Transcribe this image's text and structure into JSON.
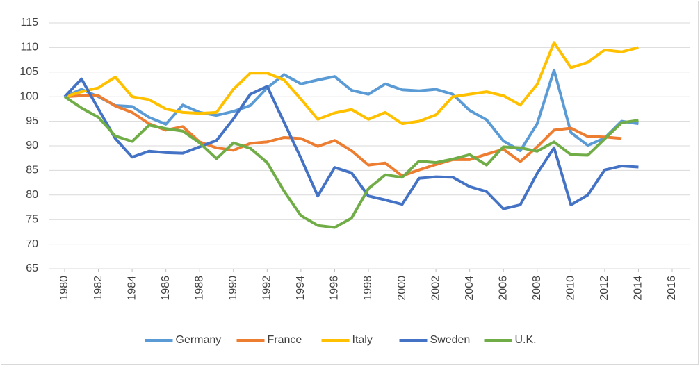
{
  "chart_data": {
    "type": "line",
    "x": [
      1980,
      1981,
      1982,
      1983,
      1984,
      1985,
      1986,
      1987,
      1988,
      1989,
      1990,
      1991,
      1992,
      1993,
      1994,
      1995,
      1996,
      1997,
      1998,
      1999,
      2000,
      2001,
      2002,
      2003,
      2004,
      2005,
      2006,
      2007,
      2008,
      2009,
      2010,
      2011,
      2012,
      2013,
      2014
    ],
    "series": [
      {
        "name": "Germany",
        "color": "#5B9BD5",
        "values": [
          100,
          101.5,
          100,
          98.2,
          98,
          95.8,
          94.4,
          98.3,
          96.8,
          96.2,
          97,
          98.2,
          101.8,
          104.5,
          102.6,
          103.4,
          104.1,
          101.3,
          100.5,
          102.6,
          101.4,
          101.2,
          101.5,
          100.5,
          97.2,
          95.3,
          91,
          89,
          94.5,
          105.4,
          92.7,
          90.1,
          91.6,
          95,
          94.5
        ]
      },
      {
        "name": "France",
        "color": "#ED7D31",
        "values": [
          100,
          100.2,
          100.2,
          98.1,
          96.8,
          94.5,
          93.2,
          93.9,
          90.8,
          89.6,
          89.1,
          90.5,
          90.8,
          91.7,
          91.5,
          89.9,
          91.1,
          89,
          86.1,
          86.5,
          83.9,
          85.1,
          86.2,
          87.2,
          87.2,
          88.3,
          89.3,
          86.8,
          89.8,
          93.2,
          93.6,
          91.9,
          91.8,
          91.5,
          null
        ]
      },
      {
        "name": "Italy",
        "color": "#FFC000",
        "values": [
          100,
          101,
          101.8,
          104,
          100,
          99.4,
          97.5,
          96.8,
          96.6,
          96.8,
          101.5,
          104.8,
          104.8,
          103.4,
          99.5,
          95.4,
          96.7,
          97.4,
          95.4,
          96.8,
          94.5,
          95,
          96.3,
          100,
          100.5,
          101,
          100.2,
          98.3,
          102.5,
          111,
          105.9,
          107,
          109.5,
          109.1,
          110
        ]
      },
      {
        "name": "Sweden",
        "color": "#4472C4",
        "values": [
          100,
          103.6,
          97.5,
          91.5,
          87.7,
          88.9,
          88.6,
          88.5,
          89.8,
          91.1,
          95.5,
          100.5,
          102.1,
          94.8,
          87.5,
          79.8,
          85.6,
          84.5,
          79.8,
          79,
          78.1,
          83.4,
          83.7,
          83.6,
          81.7,
          80.7,
          77.2,
          78,
          84.4,
          89.6,
          78,
          80,
          85.1,
          85.9,
          85.7
        ]
      },
      {
        "name": "U.K.",
        "color": "#70AD47",
        "values": [
          100,
          97.7,
          95.8,
          92,
          90.9,
          94.2,
          93.5,
          93,
          90.6,
          87.4,
          90.6,
          89.5,
          86.6,
          80.8,
          75.8,
          73.8,
          73.4,
          75.3,
          81.3,
          84.1,
          83.6,
          86.9,
          86.6,
          87.3,
          88.2,
          86.1,
          89.8,
          89.6,
          88.9,
          90.8,
          88.2,
          88.1,
          91.4,
          94.7,
          95.2
        ]
      }
    ],
    "xlim": [
      1980,
      2016
    ],
    "xticks": [
      1980,
      1982,
      1984,
      1986,
      1988,
      1990,
      1992,
      1994,
      1996,
      1998,
      2000,
      2002,
      2004,
      2006,
      2008,
      2010,
      2012,
      2014,
      2016
    ],
    "ylim": [
      65,
      115
    ],
    "yticks": [
      65,
      70,
      75,
      80,
      85,
      90,
      95,
      100,
      105,
      110,
      115
    ],
    "grid": true,
    "legend": "bottom"
  }
}
